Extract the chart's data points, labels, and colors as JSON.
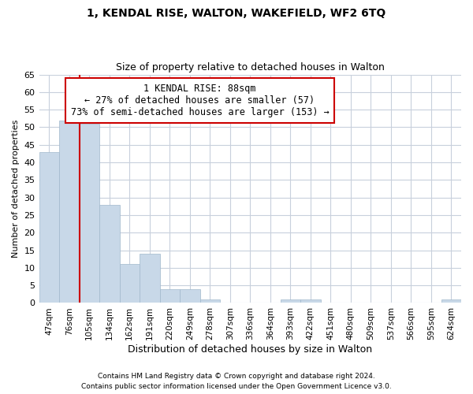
{
  "title": "1, KENDAL RISE, WALTON, WAKEFIELD, WF2 6TQ",
  "subtitle": "Size of property relative to detached houses in Walton",
  "xlabel": "Distribution of detached houses by size in Walton",
  "ylabel": "Number of detached properties",
  "bar_labels": [
    "47sqm",
    "76sqm",
    "105sqm",
    "134sqm",
    "162sqm",
    "191sqm",
    "220sqm",
    "249sqm",
    "278sqm",
    "307sqm",
    "336sqm",
    "364sqm",
    "393sqm",
    "422sqm",
    "451sqm",
    "480sqm",
    "509sqm",
    "537sqm",
    "566sqm",
    "595sqm",
    "624sqm"
  ],
  "bar_values": [
    43,
    52,
    51,
    28,
    11,
    14,
    4,
    4,
    1,
    0,
    0,
    0,
    1,
    1,
    0,
    0,
    0,
    0,
    0,
    0,
    1
  ],
  "bar_color": "#c8d8e8",
  "bar_edge_color": "#a0b8cc",
  "highlight_line_color": "#cc0000",
  "ylim": [
    0,
    65
  ],
  "yticks": [
    0,
    5,
    10,
    15,
    20,
    25,
    30,
    35,
    40,
    45,
    50,
    55,
    60,
    65
  ],
  "annotation_title": "1 KENDAL RISE: 88sqm",
  "annotation_line1": "← 27% of detached houses are smaller (57)",
  "annotation_line2": "73% of semi-detached houses are larger (153) →",
  "annotation_box_color": "#ffffff",
  "annotation_box_edge": "#cc0000",
  "footer1": "Contains HM Land Registry data © Crown copyright and database right 2024.",
  "footer2": "Contains public sector information licensed under the Open Government Licence v3.0.",
  "bg_color": "#ffffff",
  "grid_color": "#c8d0dc"
}
